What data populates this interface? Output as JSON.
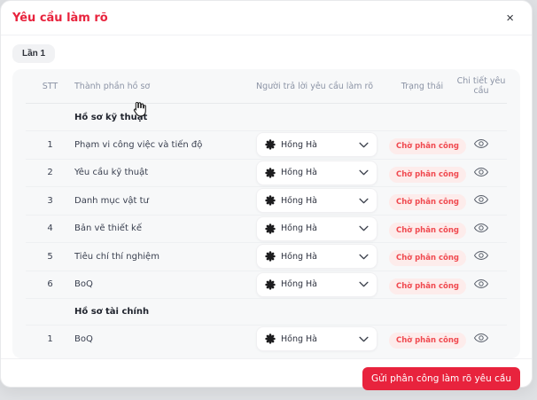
{
  "modal": {
    "title": "Yêu cầu làm rõ",
    "close_label": "×"
  },
  "tabs": {
    "round1_label": "Lần 1"
  },
  "table": {
    "columns": {
      "stt": "STT",
      "component": "Thành phần hồ sơ",
      "assignee": "Người trả lời yêu cầu làm rõ",
      "status": "Trạng thái",
      "detail": "Chi tiết yêu cầu"
    },
    "groups": [
      {
        "label": "Hồ sơ kỹ thuật",
        "rows": [
          {
            "stt": "1",
            "component": "Phạm vi công việc và tiến độ",
            "assignee": "Hồng Hà",
            "status": "Chờ phân công"
          },
          {
            "stt": "2",
            "component": "Yêu cầu kỹ thuật",
            "assignee": "Hồng Hà",
            "status": "Chờ phân công"
          },
          {
            "stt": "3",
            "component": "Danh mục vật tư",
            "assignee": "Hồng Hà",
            "status": "Chờ phân công"
          },
          {
            "stt": "4",
            "component": "Bản vẽ thiết kế",
            "assignee": "Hồng Hà",
            "status": "Chờ phân công"
          },
          {
            "stt": "5",
            "component": "Tiêu chí thí nghiệm",
            "assignee": "Hồng Hà",
            "status": "Chờ phân công"
          },
          {
            "stt": "6",
            "component": "BoQ",
            "assignee": "Hồng Hà",
            "status": "Chờ phân công"
          }
        ]
      },
      {
        "label": "Hồ sơ tài chính",
        "rows": [
          {
            "stt": "1",
            "component": "BoQ",
            "assignee": "Hồng Hà",
            "status": "Chờ phân công"
          }
        ]
      }
    ]
  },
  "footer": {
    "submit_label": "Gửi phân công làm rõ yêu cầu"
  },
  "icons": {
    "close": "close-icon",
    "assignee_avatar": "flower-avatar-icon",
    "dropdown": "chevron-down-icon",
    "detail_view": "eye-icon",
    "pointer": "hand-cursor"
  },
  "colors": {
    "accent_red": "#E8233D",
    "badge_bg": "#FDECEB",
    "badge_text": "#F0494F",
    "card_bg": "#F7F8F9"
  }
}
